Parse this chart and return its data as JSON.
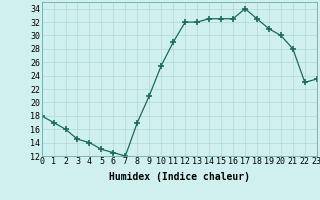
{
  "x": [
    0,
    1,
    2,
    3,
    4,
    5,
    6,
    7,
    8,
    9,
    10,
    11,
    12,
    13,
    14,
    15,
    16,
    17,
    18,
    19,
    20,
    21,
    22,
    23
  ],
  "y": [
    18,
    17,
    16,
    14.5,
    14,
    13,
    12.5,
    12,
    17,
    21,
    25.5,
    29,
    32,
    32,
    32.5,
    32.5,
    32.5,
    34,
    32.5,
    31,
    30,
    28,
    23,
    23.5
  ],
  "xlabel": "Humidex (Indice chaleur)",
  "xlim": [
    0,
    23
  ],
  "ylim": [
    12,
    35
  ],
  "yticks": [
    12,
    14,
    16,
    18,
    20,
    22,
    24,
    26,
    28,
    30,
    32,
    34
  ],
  "xtick_labels": [
    "0",
    "1",
    "2",
    "3",
    "4",
    "5",
    "6",
    "7",
    "8",
    "9",
    "10",
    "11",
    "12",
    "13",
    "14",
    "15",
    "16",
    "17",
    "18",
    "19",
    "20",
    "21",
    "22",
    "23"
  ],
  "line_color": "#1a6b5a",
  "marker_color": "#1a6b5a",
  "bg_color": "#cff0ee",
  "grid_color": "#b0d8d4",
  "axis_fontsize": 6.5,
  "tick_fontsize": 6,
  "xlabel_fontsize": 7
}
